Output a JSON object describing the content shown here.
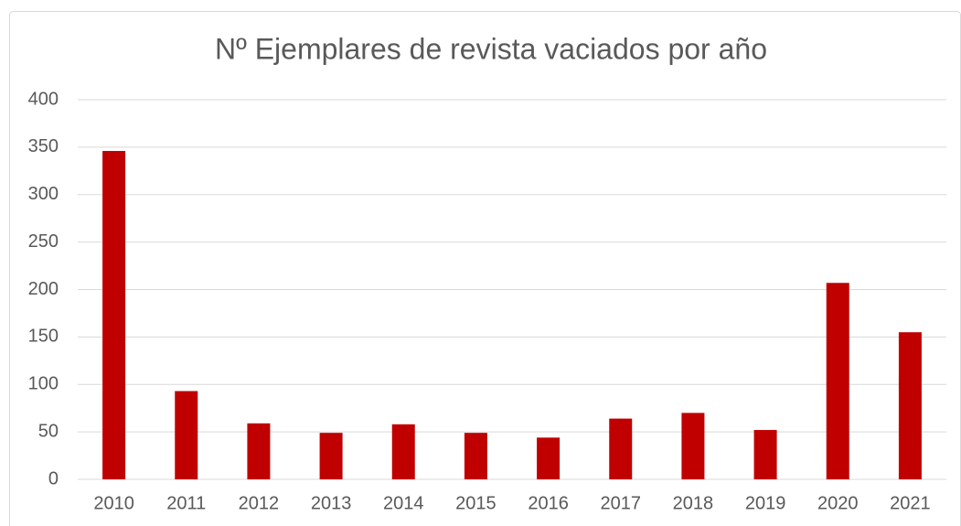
{
  "chart_data": {
    "type": "bar",
    "title": "Nº Ejemplares de revista vaciados por año",
    "categories": [
      "2010",
      "2011",
      "2012",
      "2013",
      "2014",
      "2015",
      "2016",
      "2017",
      "2018",
      "2019",
      "2020",
      "2021"
    ],
    "values": [
      346,
      93,
      59,
      49,
      58,
      49,
      44,
      64,
      70,
      52,
      207,
      155
    ],
    "color": "#c00000",
    "ylim": [
      0,
      400
    ],
    "yticks": [
      0,
      50,
      100,
      150,
      200,
      250,
      300,
      350,
      400
    ],
    "grid": true
  }
}
